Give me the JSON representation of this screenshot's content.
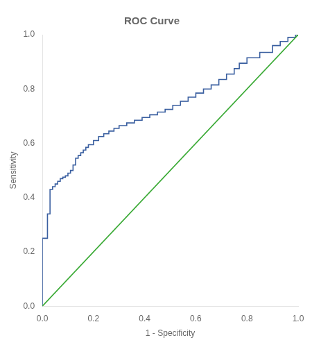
{
  "chart_data": {
    "type": "line",
    "title": "ROC Curve",
    "xlabel": "1 - Specificity",
    "ylabel": "Sensitivity",
    "xlim": [
      0.0,
      1.0
    ],
    "ylim": [
      0.0,
      1.0
    ],
    "xticks": [
      {
        "value": 0.0,
        "label": "0.0"
      },
      {
        "value": 0.2,
        "label": "0.2"
      },
      {
        "value": 0.4,
        "label": "0.4"
      },
      {
        "value": 0.6,
        "label": "0.6"
      },
      {
        "value": 0.8,
        "label": "0.8"
      },
      {
        "value": 1.0,
        "label": "1.0"
      }
    ],
    "yticks": [
      {
        "value": 0.0,
        "label": "0.0"
      },
      {
        "value": 0.2,
        "label": "0.2"
      },
      {
        "value": 0.4,
        "label": "0.4"
      },
      {
        "value": 0.6,
        "label": "0.6"
      },
      {
        "value": 0.8,
        "label": "0.8"
      },
      {
        "value": 1.0,
        "label": "1.0"
      }
    ],
    "grid": false,
    "series": [
      {
        "color": "#3aaa35",
        "x": [
          0,
          1
        ],
        "values": [
          0,
          1
        ]
      },
      {
        "color": "#3a5fa0",
        "x": [
          0.0,
          0.0,
          0.02,
          0.02,
          0.03,
          0.03,
          0.04,
          0.04,
          0.05,
          0.05,
          0.06,
          0.06,
          0.07,
          0.07,
          0.08,
          0.08,
          0.09,
          0.09,
          0.1,
          0.1,
          0.11,
          0.11,
          0.12,
          0.12,
          0.13,
          0.13,
          0.14,
          0.14,
          0.15,
          0.15,
          0.16,
          0.16,
          0.17,
          0.17,
          0.18,
          0.18,
          0.2,
          0.2,
          0.22,
          0.22,
          0.24,
          0.24,
          0.26,
          0.26,
          0.28,
          0.28,
          0.3,
          0.3,
          0.33,
          0.33,
          0.36,
          0.36,
          0.39,
          0.39,
          0.42,
          0.42,
          0.45,
          0.45,
          0.48,
          0.48,
          0.51,
          0.51,
          0.54,
          0.54,
          0.57,
          0.57,
          0.6,
          0.6,
          0.63,
          0.63,
          0.66,
          0.66,
          0.69,
          0.69,
          0.72,
          0.72,
          0.75,
          0.75,
          0.77,
          0.77,
          0.8,
          0.8,
          0.85,
          0.85,
          0.9,
          0.9,
          0.93,
          0.93,
          0.96,
          0.96,
          0.99,
          0.99,
          1.0
        ],
        "values": [
          0.0,
          0.25,
          0.25,
          0.34,
          0.34,
          0.43,
          0.43,
          0.44,
          0.44,
          0.45,
          0.45,
          0.46,
          0.46,
          0.47,
          0.47,
          0.475,
          0.475,
          0.48,
          0.48,
          0.49,
          0.49,
          0.5,
          0.5,
          0.52,
          0.52,
          0.545,
          0.545,
          0.555,
          0.555,
          0.565,
          0.565,
          0.575,
          0.575,
          0.585,
          0.585,
          0.595,
          0.595,
          0.61,
          0.61,
          0.625,
          0.625,
          0.635,
          0.635,
          0.645,
          0.645,
          0.655,
          0.655,
          0.665,
          0.665,
          0.675,
          0.675,
          0.685,
          0.685,
          0.695,
          0.695,
          0.705,
          0.705,
          0.715,
          0.715,
          0.725,
          0.725,
          0.74,
          0.74,
          0.755,
          0.755,
          0.77,
          0.77,
          0.785,
          0.785,
          0.8,
          0.8,
          0.815,
          0.815,
          0.835,
          0.835,
          0.855,
          0.855,
          0.875,
          0.875,
          0.895,
          0.895,
          0.915,
          0.915,
          0.935,
          0.935,
          0.96,
          0.96,
          0.975,
          0.975,
          0.99,
          0.99,
          1.0,
          1.0
        ]
      }
    ]
  }
}
